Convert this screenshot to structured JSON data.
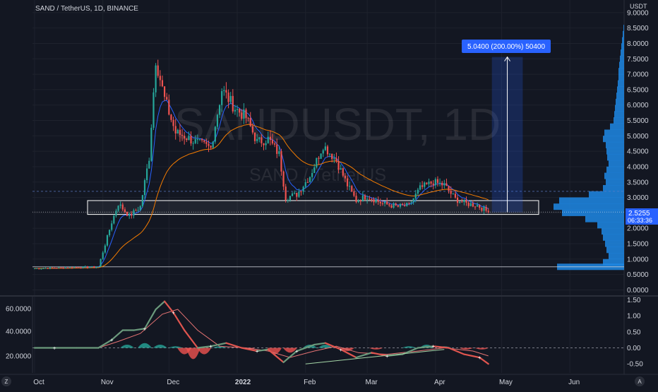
{
  "header": {
    "symbol_line": "SAND / TetherUS, 1D, BINANCE",
    "currency": "USDT"
  },
  "watermark": {
    "ticker": "SANDUSDT, 1D",
    "name": "SAND / TetherUS"
  },
  "price_box": {
    "price": "2.5255",
    "countdown": "06:33:36",
    "color": "#2962ff"
  },
  "measure_label": "5.0400 (200.00%) 50400",
  "icons": {
    "left_corner": "Z",
    "right_corner": "A"
  },
  "colors": {
    "up": "#26a69a",
    "down": "#ef5350",
    "ema_fast": "#2962ff",
    "ema_slow": "#f57c00",
    "volume_profile": "#1e88e5",
    "background": "#131722"
  },
  "chart_data": [
    {
      "type": "candlestick",
      "title": "SAND / TetherUS, 1D, BINANCE",
      "y_unit": "USDT",
      "ylim": [
        -0.3,
        9.3
      ],
      "y_ticks": [
        "9.0000",
        "8.5000",
        "8.0000",
        "7.5000",
        "7.0000",
        "6.5000",
        "6.0000",
        "5.5000",
        "5.0000",
        "4.5000",
        "4.0000",
        "3.5000",
        "3.0000",
        "2.5000",
        "2.0000",
        "1.5000",
        "1.0000",
        "0.5000",
        "0.0000"
      ],
      "x_ticks": [
        "Oct",
        "Nov",
        "Dec",
        "2022",
        "Feb",
        "Mar",
        "Apr",
        "May",
        "Jun"
      ],
      "grid": true,
      "last_price": 2.5255,
      "support_zone": [
        2.45,
        2.9
      ],
      "horizontal_levels": [
        3.2,
        0.75
      ],
      "anchors": [
        {
          "date": "2021-10-01",
          "price": 0.7
        },
        {
          "date": "2021-10-30",
          "price": 0.75
        },
        {
          "date": "2021-11-05",
          "price": 2.2
        },
        {
          "date": "2021-11-08",
          "price": 2.8
        },
        {
          "date": "2021-11-13",
          "price": 2.4
        },
        {
          "date": "2021-11-18",
          "price": 2.7
        },
        {
          "date": "2021-11-22",
          "price": 4.3
        },
        {
          "date": "2021-11-25",
          "price": 7.5
        },
        {
          "date": "2021-11-29",
          "price": 6.2
        },
        {
          "date": "2021-12-04",
          "price": 5.1
        },
        {
          "date": "2021-12-08",
          "price": 5.0
        },
        {
          "date": "2021-12-13",
          "price": 4.8
        },
        {
          "date": "2021-12-20",
          "price": 4.6
        },
        {
          "date": "2021-12-25",
          "price": 6.5
        },
        {
          "date": "2021-12-31",
          "price": 5.9
        },
        {
          "date": "2022-01-05",
          "price": 5.6
        },
        {
          "date": "2022-01-10",
          "price": 4.8
        },
        {
          "date": "2022-01-15",
          "price": 4.9
        },
        {
          "date": "2022-01-20",
          "price": 4.4
        },
        {
          "date": "2022-01-23",
          "price": 3.0
        },
        {
          "date": "2022-01-28",
          "price": 3.1
        },
        {
          "date": "2022-02-03",
          "price": 3.7
        },
        {
          "date": "2022-02-09",
          "price": 4.7
        },
        {
          "date": "2022-02-15",
          "price": 4.2
        },
        {
          "date": "2022-02-20",
          "price": 3.4
        },
        {
          "date": "2022-02-24",
          "price": 2.9
        },
        {
          "date": "2022-03-01",
          "price": 3.05
        },
        {
          "date": "2022-03-08",
          "price": 2.8
        },
        {
          "date": "2022-03-15",
          "price": 2.7
        },
        {
          "date": "2022-03-20",
          "price": 2.75
        },
        {
          "date": "2022-03-25",
          "price": 3.3
        },
        {
          "date": "2022-03-31",
          "price": 3.5
        },
        {
          "date": "2022-04-05",
          "price": 3.4
        },
        {
          "date": "2022-04-10",
          "price": 2.95
        },
        {
          "date": "2022-04-15",
          "price": 2.8
        },
        {
          "date": "2022-04-20",
          "price": 2.75
        },
        {
          "date": "2022-04-25",
          "price": 2.52
        }
      ],
      "volume_profile": [
        {
          "price": 0.75,
          "volume": 95
        },
        {
          "price": 0.9,
          "volume": 30
        },
        {
          "price": 1.1,
          "volume": 22
        },
        {
          "price": 1.3,
          "volume": 25
        },
        {
          "price": 1.5,
          "volume": 27
        },
        {
          "price": 1.7,
          "volume": 30
        },
        {
          "price": 1.9,
          "volume": 32
        },
        {
          "price": 2.1,
          "volume": 38
        },
        {
          "price": 2.3,
          "volume": 55
        },
        {
          "price": 2.5,
          "volume": 88
        },
        {
          "price": 2.7,
          "volume": 100
        },
        {
          "price": 2.9,
          "volume": 92
        },
        {
          "price": 3.1,
          "volume": 50
        },
        {
          "price": 3.3,
          "volume": 30
        },
        {
          "price": 3.5,
          "volume": 26
        },
        {
          "price": 3.7,
          "volume": 28
        },
        {
          "price": 3.9,
          "volume": 25
        },
        {
          "price": 4.1,
          "volume": 22
        },
        {
          "price": 4.3,
          "volume": 24
        },
        {
          "price": 4.5,
          "volume": 25
        },
        {
          "price": 4.7,
          "volume": 26
        },
        {
          "price": 4.9,
          "volume": 30
        },
        {
          "price": 5.1,
          "volume": 28
        },
        {
          "price": 5.3,
          "volume": 20
        },
        {
          "price": 5.5,
          "volume": 15
        },
        {
          "price": 5.7,
          "volume": 14
        },
        {
          "price": 5.9,
          "volume": 13
        },
        {
          "price": 6.1,
          "volume": 12
        },
        {
          "price": 6.3,
          "volume": 11
        },
        {
          "price": 6.5,
          "volume": 10
        },
        {
          "price": 6.7,
          "volume": 9
        },
        {
          "price": 6.9,
          "volume": 8
        },
        {
          "price": 7.1,
          "volume": 8
        },
        {
          "price": 7.3,
          "volume": 7
        },
        {
          "price": 7.5,
          "volume": 6
        },
        {
          "price": 7.7,
          "volume": 5
        },
        {
          "price": 7.9,
          "volume": 4
        },
        {
          "price": 8.1,
          "volume": 3
        },
        {
          "price": 8.3,
          "volume": 2
        },
        {
          "price": 8.5,
          "volume": 1
        }
      ],
      "measure": {
        "from_date": "2022-04-25",
        "to_date": "2022-05-09",
        "from_price": 2.52,
        "to_price": 7.56,
        "label": "5.0400 (200.00%) 50400"
      }
    },
    {
      "type": "line",
      "title": "",
      "ylim": [
        -0.7,
        1.55
      ],
      "left_ticks": [
        "60.0000",
        "40.0000",
        "20.0000"
      ],
      "right_ticks": [
        "1.50",
        "1.00",
        "0.50",
        "0.00",
        "-0.50"
      ],
      "baseline": 0.0,
      "series": [
        {
          "role": "oscillator",
          "points": [
            {
              "date": "2021-10-01",
              "value": 0.0
            },
            {
              "date": "2021-10-10",
              "value": 0.0
            },
            {
              "date": "2021-10-20",
              "value": 0.0
            },
            {
              "date": "2021-10-30",
              "value": 0.0
            },
            {
              "date": "2021-11-05",
              "value": 0.25
            },
            {
              "date": "2021-11-10",
              "value": 0.55
            },
            {
              "date": "2021-11-15",
              "value": 0.55
            },
            {
              "date": "2021-11-20",
              "value": 0.6
            },
            {
              "date": "2021-11-25",
              "value": 1.2
            },
            {
              "date": "2021-11-29",
              "value": 1.45
            },
            {
              "date": "2021-12-03",
              "value": 1.1
            },
            {
              "date": "2021-12-08",
              "value": 0.55
            },
            {
              "date": "2021-12-14",
              "value": 0.0
            },
            {
              "date": "2021-12-20",
              "value": 0.05
            },
            {
              "date": "2021-12-27",
              "value": 0.15
            },
            {
              "date": "2022-01-03",
              "value": 0.0
            },
            {
              "date": "2022-01-10",
              "value": -0.1
            },
            {
              "date": "2022-01-15",
              "value": -0.05
            },
            {
              "date": "2022-01-22",
              "value": -0.45
            },
            {
              "date": "2022-01-28",
              "value": -0.1
            },
            {
              "date": "2022-02-05",
              "value": 0.1
            },
            {
              "date": "2022-02-10",
              "value": 0.15
            },
            {
              "date": "2022-02-17",
              "value": -0.05
            },
            {
              "date": "2022-02-24",
              "value": -0.3
            },
            {
              "date": "2022-03-03",
              "value": -0.15
            },
            {
              "date": "2022-03-10",
              "value": -0.25
            },
            {
              "date": "2022-03-17",
              "value": -0.2
            },
            {
              "date": "2022-03-24",
              "value": 0.0
            },
            {
              "date": "2022-03-31",
              "value": 0.05
            },
            {
              "date": "2022-04-07",
              "value": 0.0
            },
            {
              "date": "2022-04-14",
              "value": -0.2
            },
            {
              "date": "2022-04-21",
              "value": -0.3
            },
            {
              "date": "2022-04-25",
              "value": -0.5
            }
          ]
        },
        {
          "role": "signal",
          "points": [
            {
              "date": "2021-10-01",
              "value": 0.0
            },
            {
              "date": "2021-10-30",
              "value": 0.0
            },
            {
              "date": "2021-11-08",
              "value": 0.2
            },
            {
              "date": "2021-11-18",
              "value": 0.45
            },
            {
              "date": "2021-11-28",
              "value": 1.05
            },
            {
              "date": "2021-12-05",
              "value": 1.2
            },
            {
              "date": "2021-12-14",
              "value": 0.55
            },
            {
              "date": "2021-12-24",
              "value": 0.05
            },
            {
              "date": "2022-01-05",
              "value": 0.0
            },
            {
              "date": "2022-01-15",
              "value": -0.1
            },
            {
              "date": "2022-01-25",
              "value": -0.3
            },
            {
              "date": "2022-02-05",
              "value": -0.1
            },
            {
              "date": "2022-02-15",
              "value": 0.05
            },
            {
              "date": "2022-02-25",
              "value": -0.15
            },
            {
              "date": "2022-03-10",
              "value": -0.2
            },
            {
              "date": "2022-03-24",
              "value": -0.1
            },
            {
              "date": "2022-04-05",
              "value": 0.0
            },
            {
              "date": "2022-04-18",
              "value": -0.1
            },
            {
              "date": "2022-04-25",
              "value": -0.25
            }
          ]
        }
      ],
      "histogram": [
        {
          "date": "2021-11-12",
          "value": 0.1
        },
        {
          "date": "2021-11-20",
          "value": 0.15
        },
        {
          "date": "2021-11-27",
          "value": 0.1
        },
        {
          "date": "2021-12-04",
          "value": 0.05
        },
        {
          "date": "2021-12-08",
          "value": -0.2
        },
        {
          "date": "2021-12-12",
          "value": -0.35
        },
        {
          "date": "2021-12-17",
          "value": -0.2
        },
        {
          "date": "2021-12-24",
          "value": 0.05
        },
        {
          "date": "2022-01-06",
          "value": -0.05
        },
        {
          "date": "2022-01-18",
          "value": -0.2
        },
        {
          "date": "2022-01-25",
          "value": -0.15
        },
        {
          "date": "2022-02-03",
          "value": 0.1
        },
        {
          "date": "2022-02-10",
          "value": 0.1
        },
        {
          "date": "2022-02-20",
          "value": -0.1
        },
        {
          "date": "2022-03-05",
          "value": -0.05
        },
        {
          "date": "2022-03-20",
          "value": 0.05
        },
        {
          "date": "2022-03-28",
          "value": 0.1
        },
        {
          "date": "2022-04-05",
          "value": 0.05
        },
        {
          "date": "2022-04-15",
          "value": -0.05
        },
        {
          "date": "2022-04-22",
          "value": -0.05
        }
      ],
      "trendline": {
        "from_date": "2022-02-01",
        "from_value": -0.5,
        "to_date": "2022-04-05",
        "to_value": -0.05
      }
    }
  ]
}
